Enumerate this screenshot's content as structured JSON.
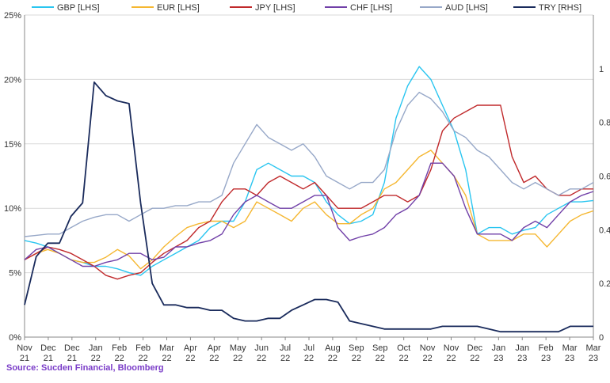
{
  "source_text": "Source: Sucden Financial, Bloomberg",
  "chart_data": {
    "type": "line",
    "title": "",
    "xlabel": "",
    "ylabel_left": "",
    "ylabel_right": "",
    "ylim_left": [
      0,
      25
    ],
    "ylim_right": [
      0,
      1.2
    ],
    "left_ticks": [
      "0%",
      "5%",
      "10%",
      "15%",
      "20%",
      "25%"
    ],
    "right_ticks": [
      "0",
      "0.2",
      "0.4",
      "0.6",
      "0.8",
      "1"
    ],
    "grid": "horizontal",
    "legend_position": "top",
    "x_ticks": [
      {
        "month": "Nov",
        "year": "21"
      },
      {
        "month": "Dec",
        "year": "21"
      },
      {
        "month": "Dec",
        "year": "21"
      },
      {
        "month": "Jan",
        "year": "22"
      },
      {
        "month": "Feb",
        "year": "22"
      },
      {
        "month": "Feb",
        "year": "22"
      },
      {
        "month": "Mar",
        "year": "22"
      },
      {
        "month": "Apr",
        "year": "22"
      },
      {
        "month": "Apr",
        "year": "22"
      },
      {
        "month": "May",
        "year": "22"
      },
      {
        "month": "Jun",
        "year": "22"
      },
      {
        "month": "Jul",
        "year": "22"
      },
      {
        "month": "Jul",
        "year": "22"
      },
      {
        "month": "Aug",
        "year": "22"
      },
      {
        "month": "Sep",
        "year": "22"
      },
      {
        "month": "Sep",
        "year": "22"
      },
      {
        "month": "Oct",
        "year": "22"
      },
      {
        "month": "Nov",
        "year": "22"
      },
      {
        "month": "Nov",
        "year": "22"
      },
      {
        "month": "Dec",
        "year": "22"
      },
      {
        "month": "Jan",
        "year": "23"
      },
      {
        "month": "Jan",
        "year": "23"
      },
      {
        "month": "Feb",
        "year": "23"
      },
      {
        "month": "Mar",
        "year": "23"
      },
      {
        "month": "Mar",
        "year": "23"
      }
    ],
    "series": [
      {
        "name": "GBP [LHS]",
        "axis": "left",
        "color": "#29c5f0",
        "values": [
          7.5,
          7.3,
          7.0,
          6.5,
          6.0,
          5.8,
          5.5,
          5.5,
          5.3,
          5.0,
          4.8,
          5.5,
          6.0,
          6.5,
          7.0,
          7.5,
          8.5,
          9.0,
          9.0,
          10.5,
          13.0,
          13.5,
          13.0,
          12.5,
          12.5,
          12.0,
          10.5,
          9.5,
          8.8,
          9.0,
          9.5,
          12.0,
          17.0,
          19.5,
          21.0,
          20.0,
          18.0,
          16.0,
          13.0,
          8.0,
          8.5,
          8.5,
          8.0,
          8.3,
          8.5,
          9.5,
          10.0,
          10.5,
          10.5,
          10.6
        ]
      },
      {
        "name": "EUR [LHS]",
        "axis": "left",
        "color": "#f5b731",
        "values": [
          6.0,
          6.5,
          6.8,
          6.5,
          6.0,
          5.8,
          5.8,
          6.2,
          6.8,
          6.3,
          5.3,
          6.0,
          7.0,
          7.8,
          8.5,
          8.8,
          9.0,
          9.0,
          8.5,
          9.0,
          10.5,
          10.0,
          9.5,
          9.0,
          10.0,
          10.5,
          9.5,
          8.8,
          8.8,
          9.5,
          10.0,
          11.5,
          12.0,
          13.0,
          14.0,
          14.5,
          13.5,
          12.5,
          11.0,
          8.0,
          7.5,
          7.5,
          7.5,
          8.0,
          8.0,
          7.0,
          8.0,
          9.0,
          9.5,
          9.8
        ]
      },
      {
        "name": "JPY [LHS]",
        "axis": "left",
        "color": "#c0292b",
        "values": [
          6.0,
          6.5,
          7.0,
          6.8,
          6.5,
          6.0,
          5.5,
          4.8,
          4.5,
          4.8,
          5.0,
          5.8,
          6.5,
          7.0,
          7.5,
          8.5,
          9.0,
          10.5,
          11.5,
          11.5,
          11.0,
          12.0,
          12.5,
          12.0,
          11.5,
          12.0,
          11.0,
          10.0,
          10.0,
          10.0,
          10.5,
          11.0,
          11.0,
          10.5,
          11.0,
          13.0,
          16.0,
          17.0,
          17.5,
          18.0,
          18.0,
          18.0,
          14.0,
          12.0,
          12.5,
          11.5,
          11.0,
          11.0,
          11.5,
          11.5
        ]
      },
      {
        "name": "CHF [LHS]",
        "axis": "left",
        "color": "#7140a8",
        "values": [
          6.0,
          6.8,
          7.0,
          6.5,
          6.0,
          5.5,
          5.5,
          5.8,
          6.0,
          6.5,
          6.5,
          6.0,
          6.2,
          7.0,
          7.0,
          7.3,
          7.5,
          8.0,
          9.5,
          10.5,
          11.0,
          10.5,
          10.0,
          10.0,
          10.5,
          11.0,
          11.0,
          8.5,
          7.5,
          7.8,
          8.0,
          8.5,
          9.5,
          10.0,
          11.0,
          13.5,
          13.5,
          12.5,
          10.0,
          8.0,
          8.0,
          8.0,
          7.5,
          8.5,
          9.0,
          8.5,
          9.5,
          10.5,
          11.0,
          11.3
        ]
      },
      {
        "name": "AUD [LHS]",
        "axis": "left",
        "color": "#97a8c8",
        "values": [
          7.8,
          7.9,
          8.0,
          8.0,
          8.5,
          9.0,
          9.3,
          9.5,
          9.5,
          9.0,
          9.5,
          10.0,
          10.0,
          10.2,
          10.2,
          10.5,
          10.5,
          11.0,
          13.5,
          15.0,
          16.5,
          15.5,
          15.0,
          14.5,
          15.0,
          14.0,
          12.5,
          12.0,
          11.5,
          12.0,
          12.0,
          13.0,
          16.0,
          18.0,
          19.0,
          18.5,
          17.5,
          16.0,
          15.5,
          14.5,
          14.0,
          13.0,
          12.0,
          11.5,
          12.0,
          11.5,
          11.0,
          11.5,
          11.5,
          12.0
        ]
      },
      {
        "name": "TRY [RHS]",
        "axis": "right",
        "color": "#1a2b5c",
        "values": [
          0.12,
          0.3,
          0.35,
          0.35,
          0.45,
          0.5,
          0.95,
          0.9,
          0.88,
          0.87,
          0.5,
          0.2,
          0.12,
          0.12,
          0.11,
          0.11,
          0.1,
          0.1,
          0.07,
          0.06,
          0.06,
          0.07,
          0.07,
          0.1,
          0.12,
          0.14,
          0.14,
          0.13,
          0.06,
          0.05,
          0.04,
          0.03,
          0.03,
          0.03,
          0.03,
          0.03,
          0.04,
          0.04,
          0.04,
          0.04,
          0.03,
          0.02,
          0.02,
          0.02,
          0.02,
          0.02,
          0.02,
          0.04,
          0.04,
          0.04
        ]
      }
    ]
  }
}
